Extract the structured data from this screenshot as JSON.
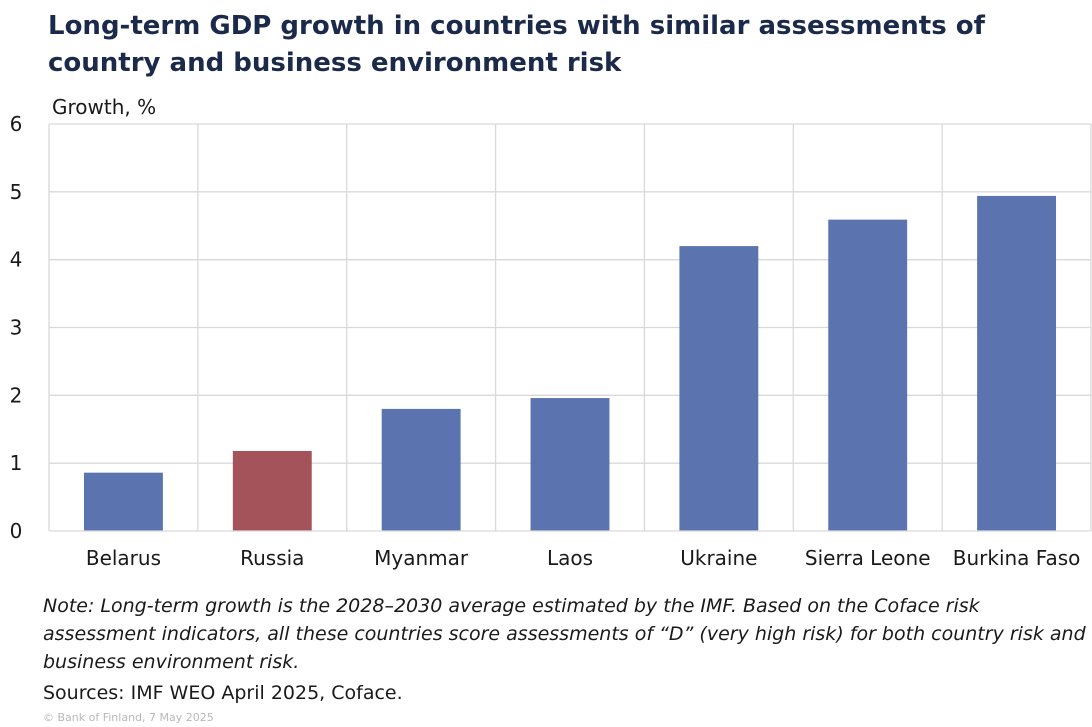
{
  "title": "Long-term GDP growth in countries with similar assessments of country and business environment risk",
  "note": "Note: Long-term growth is the 2028–2030 average estimated by the IMF. Based on the Coface risk assessment indicators, all these countries score assessments of “D” (very high risk) for both country risk and business environment risk.",
  "sources": "Sources: IMF WEO April 2025, Coface.",
  "copyright": "© Bank of Finland, 7 May 2025",
  "colors": {
    "default_bar": "#5b73ae",
    "highlight_bar": "#a5535a",
    "grid": "#d9d9d9"
  },
  "chart_data": {
    "type": "bar",
    "title": "Long-term GDP growth in countries with similar assessments of country and business environment risk",
    "ylabel": "Growth, %",
    "xlabel": "",
    "categories": [
      "Belarus",
      "Russia",
      "Myanmar",
      "Laos",
      "Ukraine",
      "Sierra Leone",
      "Burkina Faso"
    ],
    "values": [
      0.86,
      1.18,
      1.8,
      1.96,
      4.2,
      4.59,
      4.94
    ],
    "highlight": [
      "Russia"
    ],
    "ylim": [
      0,
      6
    ],
    "yticks": [
      0,
      1,
      2,
      3,
      4,
      5,
      6
    ],
    "grid": true,
    "legend": "none"
  }
}
